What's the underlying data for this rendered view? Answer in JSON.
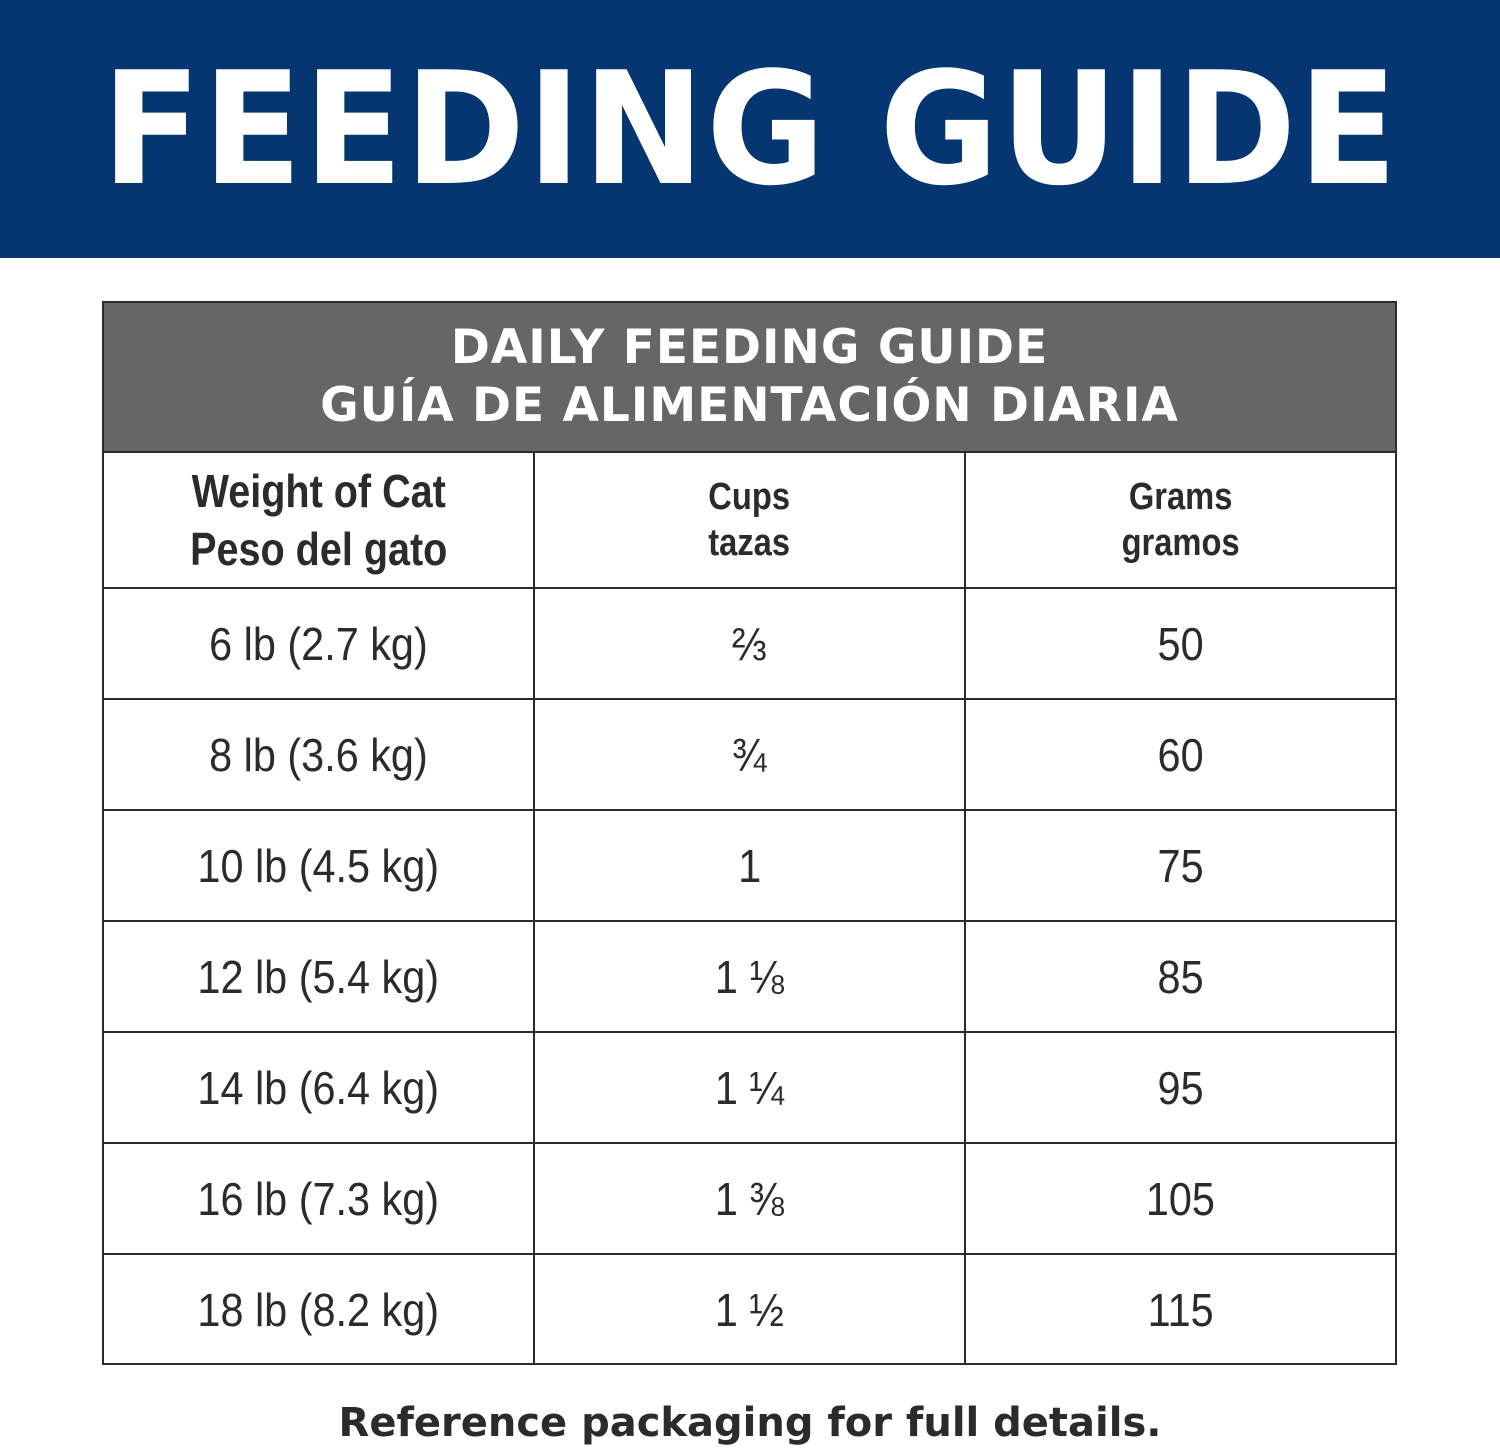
{
  "banner": {
    "title": "FEEDING GUIDE",
    "background_color": "#053671"
  },
  "table": {
    "header_color": "#666666",
    "title_line1": "DAILY FEEDING GUIDE",
    "title_line2": "GUÍA DE ALIMENTACIÓN DIARIA",
    "columns": [
      {
        "label": "Weight of Cat",
        "label_es": "Peso del gato"
      },
      {
        "label": "Cups",
        "label_es": "tazas"
      },
      {
        "label": "Grams",
        "label_es": "gramos"
      }
    ],
    "rows": [
      {
        "weight": "6 lb (2.7 kg)",
        "cups": "⅔",
        "grams": "50"
      },
      {
        "weight": "8 lb (3.6 kg)",
        "cups": "¾",
        "grams": "60"
      },
      {
        "weight": "10 lb (4.5 kg)",
        "cups": "1",
        "grams": "75"
      },
      {
        "weight": "12 lb (5.4 kg)",
        "cups": "1 ⅛",
        "grams": "85"
      },
      {
        "weight": "14 lb (6.4 kg)",
        "cups": "1 ¼",
        "grams": "95"
      },
      {
        "weight": "16 lb (7.3 kg)",
        "cups": "1 ⅜",
        "grams": "105"
      },
      {
        "weight": "18 lb (8.2 kg)",
        "cups": "1 ½",
        "grams": "115"
      }
    ]
  },
  "footer": {
    "note": "Reference packaging for full details."
  }
}
